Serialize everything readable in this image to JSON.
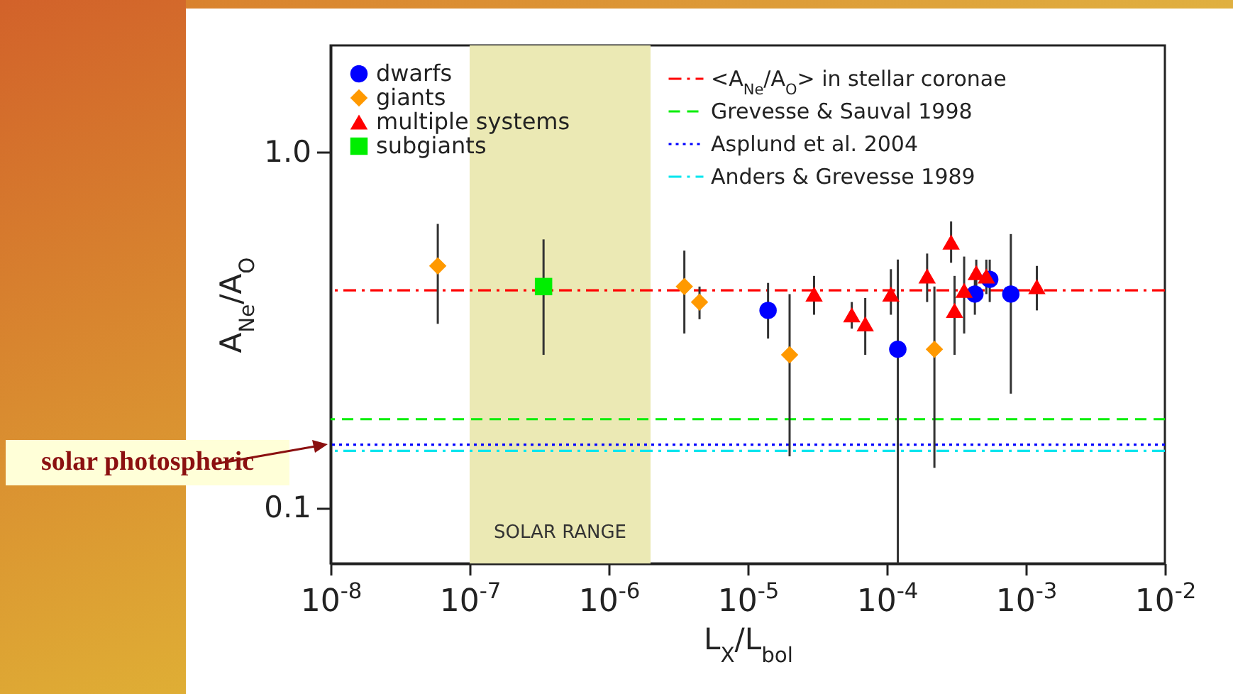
{
  "chart_data": {
    "type": "scatter",
    "xlabel": "L$_{X}$/L$_{bol}$",
    "ylabel": "A$_{Ne}$/A$_{O}$",
    "log": "xy",
    "grid": false,
    "legend": "top left",
    "xlim": [
      1e-08,
      0.01
    ],
    "xticks": [
      {
        "value": 1e-08,
        "label": "10$^{-8}$"
      },
      {
        "value": 1e-07,
        "label": "10$^{-7}$"
      },
      {
        "value": 1e-06,
        "label": "10$^{-6}$"
      },
      {
        "value": 1e-05,
        "label": "10$^{-5}$"
      },
      {
        "value": 0.0001,
        "label": "10$^{-4}$"
      },
      {
        "value": 0.001,
        "label": "10$^{-3}$"
      },
      {
        "value": 0.01,
        "label": "10$^{-2}$"
      }
    ],
    "ylim": [
      0.07,
      2.0
    ],
    "yticks": [
      0.1,
      {
        "value": 1,
        "label": "1.0"
      }
    ],
    "series": [
      {
        "name": "dwarfs",
        "color": "#0000ff",
        "marker": "circle",
        "x": [
          1.4e-05,
          0.00012,
          0.00043,
          0.00055,
          0.00078
        ],
        "values": [
          0.36,
          0.28,
          0.4,
          0.44,
          0.4
        ],
        "errors": [
          [
            0.3,
            0.43
          ],
          [
            0.07,
            0.5
          ],
          [
            0.35,
            0.47
          ],
          [
            0.38,
            0.5
          ],
          [
            0.21,
            0.59
          ]
        ]
      },
      {
        "name": "giants",
        "color": "#ff9900",
        "marker": "diamond",
        "x": [
          5.9e-08,
          3.5e-06,
          4.5e-06,
          2e-05,
          0.00022
        ],
        "values": [
          0.48,
          0.42,
          0.38,
          0.27,
          0.28
        ],
        "errors": [
          [
            0.33,
            0.63
          ],
          [
            0.31,
            0.53
          ],
          [
            0.34,
            0.42
          ],
          [
            0.14,
            0.4
          ],
          [
            0.13,
            0.42
          ]
        ]
      },
      {
        "name": "multiple systems",
        "color": "#ff0000",
        "marker": "triangle",
        "x": [
          3e-05,
          5.6e-05,
          7e-05,
          0.000107,
          0.000195,
          0.00029,
          0.000307,
          0.00036,
          0.00044,
          0.00052,
          0.0012
        ],
        "values": [
          0.4,
          0.35,
          0.33,
          0.4,
          0.45,
          0.56,
          0.36,
          0.41,
          0.46,
          0.45,
          0.42
        ],
        "errors": [
          [
            0.35,
            0.45
          ],
          [
            0.32,
            0.38
          ],
          [
            0.27,
            0.39
          ],
          [
            0.35,
            0.47
          ],
          [
            0.38,
            0.52
          ],
          [
            0.49,
            0.64
          ],
          [
            0.27,
            0.45
          ],
          [
            0.31,
            0.51
          ],
          [
            0.4,
            0.5
          ],
          [
            0.4,
            0.5
          ],
          [
            0.36,
            0.48
          ]
        ]
      },
      {
        "name": "subgiants",
        "color": "#00ee00",
        "marker": "square",
        "x": [
          3.4e-07
        ],
        "values": [
          0.42
        ],
        "errors": [
          [
            0.27,
            0.57
          ]
        ]
      }
    ],
    "ref_lines": [
      {
        "axis": "y",
        "value": 0.41,
        "label": "<A$_{Ne}$/A$_{O}$> in stellar coronae",
        "color": "#ff0000",
        "line_style": "dashdot"
      },
      {
        "axis": "y",
        "value": 0.178,
        "label": "Grevesse & Sauval 1998",
        "color": "#00ee00",
        "line_style": "dashed"
      },
      {
        "axis": "y",
        "value": 0.151,
        "label": "Asplund et al. 2004",
        "color": "#0000ff",
        "line_style": "dotted"
      },
      {
        "axis": "y",
        "value": 0.145,
        "label": "Anders & Grevesse 1989",
        "color": "#00e5ee",
        "line_style": "dashdot"
      }
    ],
    "bands": [
      {
        "axis": "x",
        "from": 1e-07,
        "to": 2e-06,
        "label": "SOLAR RANGE",
        "color": "#ebe9b4"
      }
    ],
    "annotations": [
      {
        "text": "solar photospheric",
        "x": 1e-08,
        "y": 0.151
      }
    ]
  }
}
